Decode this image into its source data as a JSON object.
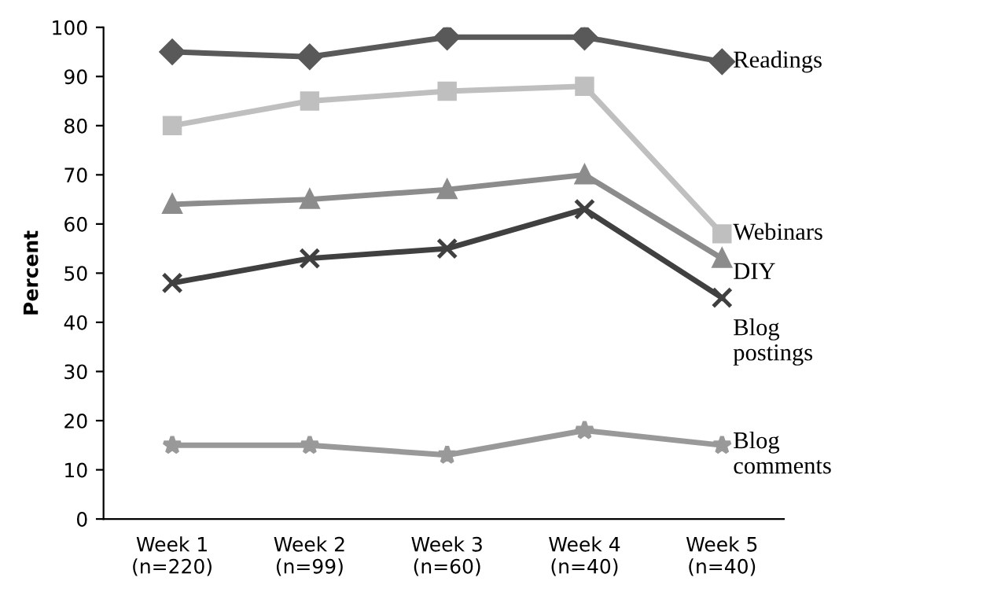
{
  "chart_data": {
    "type": "line",
    "ylabel": "Percent",
    "categories": [
      "Week 1\n(n=220)",
      "Week 2\n(n=99)",
      "Week 3\n(n=60)",
      "Week 4\n(n=40)",
      "Week 5\n(n=40)"
    ],
    "series": [
      {
        "name": "Readings",
        "color": "#595959",
        "marker": "diamond",
        "values": [
          95,
          94,
          98,
          98,
          93
        ]
      },
      {
        "name": "Webinars",
        "color": "#bfbfbf",
        "marker": "square",
        "values": [
          80,
          85,
          87,
          88,
          58
        ]
      },
      {
        "name": "DIY",
        "color": "#8c8c8c",
        "marker": "triangle",
        "values": [
          64,
          65,
          67,
          70,
          53
        ]
      },
      {
        "name": "Blog\npostings",
        "color": "#404040",
        "marker": "cross",
        "values": [
          48,
          53,
          55,
          63,
          45
        ]
      },
      {
        "name": "Blog\ncomments",
        "color": "#999999",
        "marker": "star",
        "values": [
          15,
          15,
          13,
          18,
          15
        ]
      }
    ],
    "ylim": [
      0,
      100
    ],
    "yticks": [
      0,
      10,
      20,
      30,
      40,
      50,
      60,
      70,
      80,
      90,
      100
    ],
    "grid": false,
    "legend": false
  }
}
